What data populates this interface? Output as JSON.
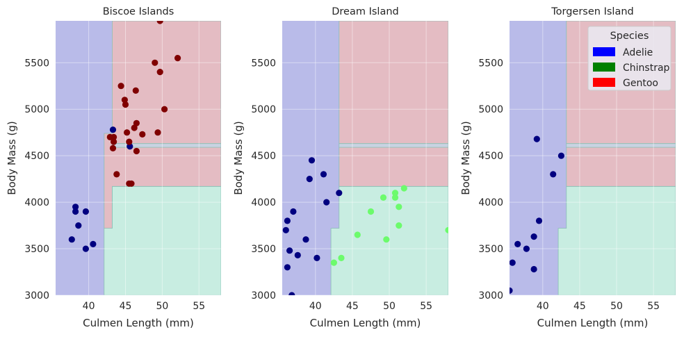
{
  "chart_data": {
    "type": "scatter",
    "background": "decision-regions",
    "shared": {
      "xlabel": "Culmen Length (mm)",
      "ylabel": "Body Mass (g)",
      "xlim": [
        35.5,
        58
      ],
      "ylim": [
        3000,
        5950
      ],
      "xticks": [
        40,
        45,
        50,
        55
      ],
      "yticks": [
        3000,
        3500,
        4000,
        4500,
        5000,
        5500
      ],
      "grid": true
    },
    "region_colors": {
      "Adelie": "#b9bbe9",
      "Chinstrap": "#c8ede1",
      "Gentoo": "#e4bcc3",
      "boundary": "#8ac0b6"
    },
    "regions": {
      "Adelie": [
        [
          35.5,
          3000
        ],
        [
          42.1,
          3000
        ],
        [
          42.1,
          3720
        ],
        [
          43.2,
          3720
        ],
        [
          43.2,
          4170
        ],
        [
          43.2,
          4620
        ],
        [
          58,
          4620
        ],
        [
          58,
          5950
        ],
        [
          43.2,
          5950
        ],
        [
          43.2,
          4720
        ],
        [
          42.1,
          4720
        ],
        [
          42.1,
          4720
        ],
        [
          35.5,
          4720
        ]
      ],
      "adelie_area": [
        [
          35.5,
          3000
        ],
        [
          42.1,
          3000
        ],
        [
          42.1,
          3720
        ],
        [
          43.2,
          3720
        ],
        [
          43.2,
          4170
        ],
        [
          43.2,
          4600
        ],
        [
          43.2,
          5950
        ],
        [
          35.5,
          5950
        ]
      ],
      "chinstrap_area": [
        [
          42.1,
          3000
        ],
        [
          58,
          3000
        ],
        [
          58,
          4170
        ],
        [
          43.2,
          4170
        ],
        [
          43.2,
          3720
        ],
        [
          42.1,
          3720
        ]
      ],
      "gentoo_area": [
        [
          43.2,
          4170
        ],
        [
          58,
          4170
        ],
        [
          58,
          4590
        ],
        [
          43.2,
          4590
        ]
      ],
      "gentoo_top": [
        [
          43.2,
          4630
        ],
        [
          58,
          4630
        ],
        [
          58,
          5950
        ],
        [
          43.2,
          5950
        ]
      ],
      "gentoo_biscoe": [
        [
          42.1,
          3720
        ],
        [
          43.2,
          3720
        ],
        [
          43.2,
          4170
        ],
        [
          58,
          4170
        ],
        [
          58,
          4590
        ],
        [
          43.2,
          4590
        ],
        [
          43.2,
          4630
        ],
        [
          58,
          4630
        ],
        [
          58,
          5950
        ],
        [
          43.2,
          5950
        ],
        [
          43.2,
          4740
        ],
        [
          42.1,
          4740
        ]
      ]
    },
    "legend": {
      "title": "Species",
      "placement": "top-right",
      "entries": [
        {
          "label": "Adelie",
          "color": "#0000ff"
        },
        {
          "label": "Chinstrap",
          "color": "#008000"
        },
        {
          "label": "Gentoo",
          "color": "#ff0000"
        }
      ]
    },
    "panels": [
      {
        "title": "Biscoe Islands",
        "series": [
          {
            "species": "Adelie",
            "color": "#000080",
            "points": [
              [
                37.7,
                3600
              ],
              [
                38.2,
                3950
              ],
              [
                38.2,
                3900
              ],
              [
                38.6,
                3750
              ],
              [
                39.6,
                3900
              ],
              [
                39.6,
                3500
              ],
              [
                40.6,
                3550
              ],
              [
                43.3,
                4780
              ],
              [
                45.6,
                4600
              ]
            ]
          },
          {
            "species": "Gentoo",
            "color": "#800000",
            "points": [
              [
                42.9,
                4700
              ],
              [
                43.3,
                4580
              ],
              [
                43.4,
                4650
              ],
              [
                43.4,
                4700
              ],
              [
                43.8,
                4300
              ],
              [
                44.4,
                5250
              ],
              [
                44.9,
                5100
              ],
              [
                45.0,
                5050
              ],
              [
                45.2,
                4750
              ],
              [
                45.5,
                4650
              ],
              [
                45.5,
                4200
              ],
              [
                45.8,
                4200
              ],
              [
                46.2,
                4800
              ],
              [
                46.4,
                5200
              ],
              [
                46.5,
                4850
              ],
              [
                46.5,
                4550
              ],
              [
                47.3,
                4730
              ],
              [
                49.0,
                5500
              ],
              [
                49.4,
                4750
              ],
              [
                49.7,
                5400
              ],
              [
                50.3,
                5000
              ],
              [
                52.1,
                5550
              ],
              [
                49.7,
                5950
              ]
            ]
          }
        ]
      },
      {
        "title": "Dream Island",
        "series": [
          {
            "species": "Adelie",
            "color": "#000080",
            "points": [
              [
                36.0,
                3700
              ],
              [
                36.2,
                3800
              ],
              [
                36.2,
                3300
              ],
              [
                36.5,
                3480
              ],
              [
                37.0,
                3900
              ],
              [
                37.6,
                3430
              ],
              [
                38.7,
                3600
              ],
              [
                39.2,
                4250
              ],
              [
                39.5,
                4450
              ],
              [
                40.2,
                3400
              ],
              [
                41.1,
                4300
              ],
              [
                41.5,
                4000
              ],
              [
                43.2,
                4100
              ],
              [
                36.8,
                3000
              ]
            ]
          },
          {
            "species": "Chinstrap",
            "color": "#6cfb6c",
            "points": [
              [
                42.5,
                3350
              ],
              [
                43.5,
                3400
              ],
              [
                45.7,
                3650
              ],
              [
                47.5,
                3900
              ],
              [
                49.2,
                4050
              ],
              [
                49.6,
                3600
              ],
              [
                50.8,
                4100
              ],
              [
                50.8,
                4050
              ],
              [
                51.3,
                3950
              ],
              [
                51.3,
                3750
              ],
              [
                52.0,
                4150
              ],
              [
                58.0,
                3700
              ]
            ]
          }
        ]
      },
      {
        "title": "Torgersen Island",
        "series": [
          {
            "species": "Adelie",
            "color": "#000080",
            "points": [
              [
                35.5,
                3050
              ],
              [
                35.9,
                3350
              ],
              [
                36.6,
                3550
              ],
              [
                37.8,
                3500
              ],
              [
                38.8,
                3630
              ],
              [
                38.8,
                3280
              ],
              [
                39.2,
                4680
              ],
              [
                39.5,
                3800
              ],
              [
                41.4,
                4300
              ],
              [
                42.5,
                4500
              ]
            ]
          }
        ]
      }
    ]
  }
}
